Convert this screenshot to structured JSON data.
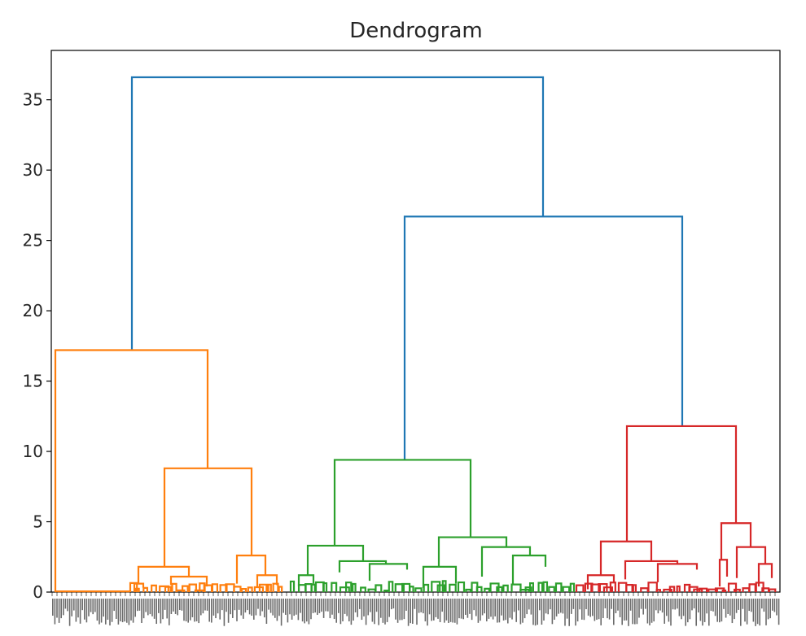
{
  "chart_data": {
    "type": "dendrogram",
    "title": "Dendrogram",
    "xlabel": "",
    "ylabel": "",
    "ylim": [
      0,
      38
    ],
    "yticks": [
      0,
      5,
      10,
      15,
      20,
      25,
      30,
      35
    ],
    "grid": false,
    "colors": {
      "link_top": "#1f77b4",
      "cluster_1": "#ff7f0e",
      "cluster_2": "#2ca02c",
      "cluster_3": "#d62728"
    },
    "top_merges": [
      {
        "height": 36.6,
        "members": [
          "cluster_1",
          "top_merge_2"
        ]
      },
      {
        "height": 26.7,
        "members": [
          "cluster_2",
          "cluster_3"
        ]
      }
    ],
    "clusters": [
      {
        "color": "cluster_1",
        "leaf_span": [
          0,
          0.33
        ],
        "root_height": 17.2
      },
      {
        "color": "cluster_2",
        "leaf_span": [
          0.33,
          0.72
        ],
        "root_height": 9.4
      },
      {
        "color": "cluster_3",
        "leaf_span": [
          0.72,
          1.0
        ],
        "root_height": 11.8
      }
    ],
    "leaf_labels_visible": "dense, overlapping (illegible)"
  }
}
